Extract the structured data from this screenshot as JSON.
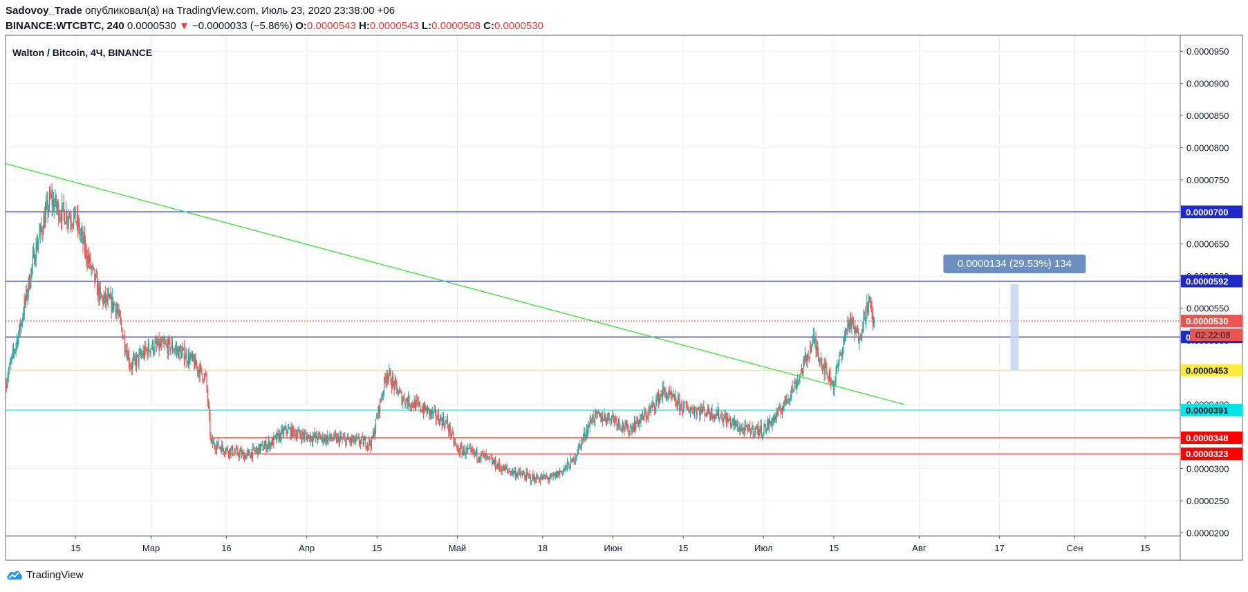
{
  "header": {
    "author": "Sadovoy_Trade",
    "published_text": "опубликовал(а) на TradingView.com, Июль 23, 2020 23:38:00 +06",
    "symbol": "BINANCE:WTCBTC, 240",
    "last": "0.0000530",
    "change": "−0.0000033 (−5.86%)",
    "o_label": "O:",
    "o": "0.0000543",
    "h_label": "H:",
    "h": "0.0000543",
    "l_label": "L:",
    "l": "0.0000508",
    "c_label": "C:",
    "c": "0.0000530"
  },
  "footer": {
    "brand": "TradingView"
  },
  "colors": {
    "up": "#26a69a",
    "down": "#ef5350",
    "trendline": "#33e533",
    "blue_level": "#1e29c8",
    "red_level": "#ff2020",
    "yellow_level": "#ffeb3b",
    "cyan_level": "#00e5e5",
    "measure": "#6d8fc0"
  },
  "chart_data": {
    "type": "candlestick",
    "title": "Walton / Bitcoin, 4Ч, BINANCE",
    "y_range": [
      1.95e-05,
      9.75e-05
    ],
    "y_ticks": [
      {
        "v": 9.5e-05,
        "label": "0.0000950"
      },
      {
        "v": 9e-05,
        "label": "0.0000900"
      },
      {
        "v": 8.5e-05,
        "label": "0.0000850"
      },
      {
        "v": 8e-05,
        "label": "0.0000800"
      },
      {
        "v": 7.5e-05,
        "label": "0.0000750"
      },
      {
        "v": 6.5e-05,
        "label": "0.0000650"
      },
      {
        "v": 6e-05,
        "label": "0.0000600"
      },
      {
        "v": 5.5e-05,
        "label": "0.0000550"
      },
      {
        "v": 5e-05,
        "label": "0.0000500"
      },
      {
        "v": 4e-05,
        "label": "0.0000400"
      },
      {
        "v": 3e-05,
        "label": "0.0000300"
      },
      {
        "v": 2.5e-05,
        "label": "0.0000250"
      },
      {
        "v": 2e-05,
        "label": "0.0000200"
      }
    ],
    "x_range": [
      "2020-02-01",
      "2020-09-22"
    ],
    "x_ticks": [
      {
        "date": "2020-02-15",
        "label": "15"
      },
      {
        "date": "2020-03-01",
        "label": "Мар"
      },
      {
        "date": "2020-03-16",
        "label": "16"
      },
      {
        "date": "2020-04-01",
        "label": "Апр"
      },
      {
        "date": "2020-04-15",
        "label": "15"
      },
      {
        "date": "2020-05-01",
        "label": "Май"
      },
      {
        "date": "2020-05-18",
        "label": "18"
      },
      {
        "date": "2020-06-01",
        "label": "Июн"
      },
      {
        "date": "2020-06-15",
        "label": "15"
      },
      {
        "date": "2020-07-01",
        "label": "Июл"
      },
      {
        "date": "2020-07-15",
        "label": "15"
      },
      {
        "date": "2020-08-01",
        "label": "Авг"
      },
      {
        "date": "2020-08-17",
        "label": "17"
      },
      {
        "date": "2020-09-01",
        "label": "Сен"
      },
      {
        "date": "2020-09-15",
        "label": "15"
      }
    ],
    "price_path": [
      [
        "2020-02-01",
        4.3e-05
      ],
      [
        "2020-02-04",
        5.2e-05
      ],
      [
        "2020-02-07",
        6.4e-05
      ],
      [
        "2020-02-10",
        7.2e-05
      ],
      [
        "2020-02-12",
        7e-05
      ],
      [
        "2020-02-15",
        6.9e-05
      ],
      [
        "2020-02-17",
        6.4e-05
      ],
      [
        "2020-02-20",
        5.65e-05
      ],
      [
        "2020-02-23",
        5.55e-05
      ],
      [
        "2020-02-26",
        4.6e-05
      ],
      [
        "2020-03-01",
        4.9e-05
      ],
      [
        "2020-03-05",
        4.9e-05
      ],
      [
        "2020-03-09",
        4.7e-05
      ],
      [
        "2020-03-12",
        4.4e-05
      ],
      [
        "2020-03-13",
        3.4e-05
      ],
      [
        "2020-03-16",
        3.3e-05
      ],
      [
        "2020-03-20",
        3.2e-05
      ],
      [
        "2020-03-25",
        3.4e-05
      ],
      [
        "2020-03-28",
        3.6e-05
      ],
      [
        "2020-04-01",
        3.5e-05
      ],
      [
        "2020-04-08",
        3.45e-05
      ],
      [
        "2020-04-14",
        3.4e-05
      ],
      [
        "2020-04-17",
        4.5e-05
      ],
      [
        "2020-04-20",
        4.1e-05
      ],
      [
        "2020-04-25",
        3.9e-05
      ],
      [
        "2020-04-29",
        3.7e-05
      ],
      [
        "2020-05-01",
        3.3e-05
      ],
      [
        "2020-05-06",
        3.2e-05
      ],
      [
        "2020-05-10",
        3e-05
      ],
      [
        "2020-05-16",
        2.85e-05
      ],
      [
        "2020-05-20",
        2.85e-05
      ],
      [
        "2020-05-24",
        3.1e-05
      ],
      [
        "2020-05-28",
        3.8e-05
      ],
      [
        "2020-06-01",
        3.8e-05
      ],
      [
        "2020-06-04",
        3.6e-05
      ],
      [
        "2020-06-08",
        3.85e-05
      ],
      [
        "2020-06-11",
        4.2e-05
      ],
      [
        "2020-06-15",
        3.95e-05
      ],
      [
        "2020-06-19",
        3.9e-05
      ],
      [
        "2020-06-22",
        3.85e-05
      ],
      [
        "2020-06-27",
        3.6e-05
      ],
      [
        "2020-07-01",
        3.6e-05
      ],
      [
        "2020-07-04",
        3.85e-05
      ],
      [
        "2020-07-08",
        4.4e-05
      ],
      [
        "2020-07-11",
        5e-05
      ],
      [
        "2020-07-13",
        4.6e-05
      ],
      [
        "2020-07-15",
        4.3e-05
      ],
      [
        "2020-07-18",
        5.3e-05
      ],
      [
        "2020-07-20",
        5.05e-05
      ],
      [
        "2020-07-22",
        5.6e-05
      ],
      [
        "2020-07-23",
        5.3e-05
      ]
    ],
    "trendline": {
      "from": [
        "2020-02-01",
        7.75e-05
      ],
      "to": [
        "2020-07-29",
        4e-05
      ]
    },
    "levels": [
      {
        "value": 7e-05,
        "label": "0.0000700",
        "color": "#1e29c8",
        "label_bg": "#1e29c8",
        "label_fg": "#ffffff",
        "from": "2020-02-01"
      },
      {
        "value": 5.92e-05,
        "label": "0.0000592",
        "color": "#1e29c8",
        "label_bg": "#1e29c8",
        "label_fg": "#ffffff",
        "from": "2020-02-01"
      },
      {
        "value": 5.3e-05,
        "label": "0.0000530",
        "color": "#ef5350",
        "label_bg": "#ef5350",
        "label_fg": "#ffffff",
        "from": "2020-02-01",
        "dashed": true
      },
      {
        "value": 5.05e-05,
        "label": "0.0000505",
        "color": "#1e29c8",
        "label_bg": "#1e29c8",
        "label_fg": "#ffffff",
        "from": "2020-02-01"
      },
      {
        "value": 4.53e-05,
        "label": "0.0000453",
        "color": "#ffeb3b",
        "label_bg": "#ffeb3b",
        "label_fg": "#131722",
        "from": "2020-02-01"
      },
      {
        "value": 3.91e-05,
        "label": "0.0000391",
        "color": "#00e5e5",
        "label_bg": "#00e5e5",
        "label_fg": "#131722",
        "from": "2020-02-01"
      },
      {
        "value": 3.48e-05,
        "label": "0.0000348",
        "color": "#ff2020",
        "label_bg": "#ff0000",
        "label_fg": "#ffffff",
        "from": "2020-03-13"
      },
      {
        "value": 3.23e-05,
        "label": "0.0000323",
        "color": "#ff2020",
        "label_bg": "#ff0000",
        "label_fg": "#ffffff",
        "from": "2020-03-15"
      }
    ],
    "countdown_label": "02:22:08",
    "measure": {
      "date": "2020-08-20",
      "from": 4.53e-05,
      "to": 5.87e-05,
      "label": "0.0000134 (29.53%) 134"
    }
  }
}
